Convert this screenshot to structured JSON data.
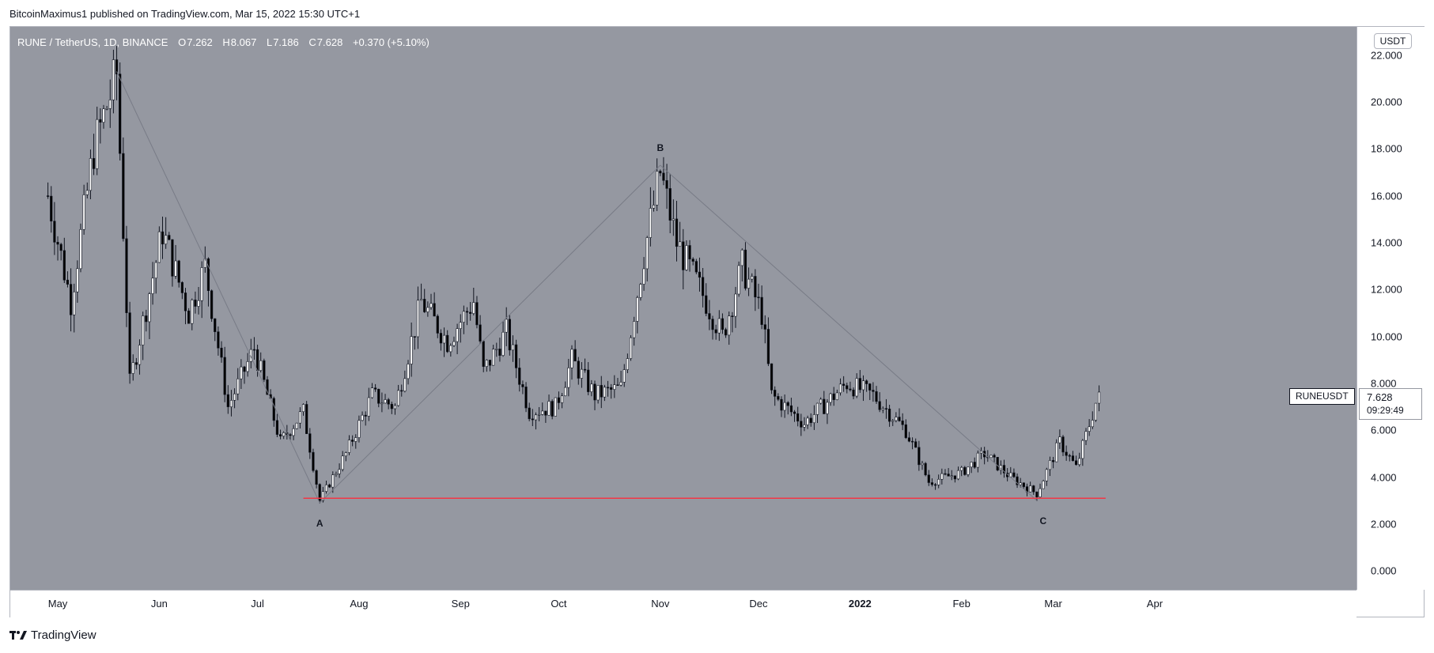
{
  "header": {
    "published_text": "BitcoinMaximus1 published on TradingView.com, Mar 15, 2022 15:30 UTC+1"
  },
  "legend": {
    "symbol_text": "RUNE / TetherUS, 1D, BINANCE",
    "o_label": "O",
    "o_value": "7.262",
    "h_label": "H",
    "h_value": "8.067",
    "l_label": "L",
    "l_value": "7.186",
    "c_label": "C",
    "c_value": "7.628",
    "change": "+0.370 (+5.10%)"
  },
  "price_axis": {
    "currency_badge": "USDT",
    "ticks": [
      "22.000",
      "20.000",
      "18.000",
      "16.000",
      "14.000",
      "12.000",
      "10.000",
      "8.000",
      "6.000",
      "4.000",
      "2.000",
      "0.000"
    ]
  },
  "time_axis": {
    "ticks": [
      "May",
      "Jun",
      "Jul",
      "Aug",
      "Sep",
      "Oct",
      "Nov",
      "Dec",
      "2022",
      "Feb",
      "Mar",
      "Apr"
    ]
  },
  "last_price": {
    "symbol": "RUNEUSDT",
    "price": "7.628",
    "countdown": "09:29:49"
  },
  "annotations": {
    "wave_a": "A",
    "wave_b": "B",
    "wave_c": "C"
  },
  "footer": {
    "brand": "TradingView"
  },
  "colors": {
    "plot_background": "#9598a1",
    "candle_up_body": "#ffffff",
    "candle_down_body": "#000000",
    "support_line": "#f23645",
    "trend_line": "#787b86"
  },
  "chart_data": {
    "type": "candlestick",
    "title": "RUNE / TetherUS, 1D, BINANCE",
    "ylabel": "USDT",
    "ylim": [
      -0.8,
      23.2
    ],
    "grid": false,
    "support_level": 3.1,
    "wave_points": [
      {
        "label": "",
        "date": "2021-05-19",
        "price": 21.3
      },
      {
        "label": "A",
        "date": "2021-07-20",
        "price": 2.9
      },
      {
        "label": "B",
        "date": "2021-11-01",
        "price": 17.3
      },
      {
        "label": "C",
        "date": "2022-02-24",
        "price": 3.0
      }
    ],
    "pivots": [
      {
        "date": "2021-04-28",
        "price": 16.0
      },
      {
        "date": "2021-05-05",
        "price": 11.5
      },
      {
        "date": "2021-05-12",
        "price": 18.0
      },
      {
        "date": "2021-05-19",
        "price": 21.2
      },
      {
        "date": "2021-05-23",
        "price": 8.0
      },
      {
        "date": "2021-06-02",
        "price": 14.5
      },
      {
        "date": "2021-06-10",
        "price": 11.0
      },
      {
        "date": "2021-06-15",
        "price": 13.0
      },
      {
        "date": "2021-06-22",
        "price": 7.0
      },
      {
        "date": "2021-06-30",
        "price": 9.5
      },
      {
        "date": "2021-07-08",
        "price": 5.5
      },
      {
        "date": "2021-07-15",
        "price": 6.8
      },
      {
        "date": "2021-07-20",
        "price": 3.0
      },
      {
        "date": "2021-07-28",
        "price": 5.0
      },
      {
        "date": "2021-08-05",
        "price": 7.5
      },
      {
        "date": "2021-08-12",
        "price": 7.0
      },
      {
        "date": "2021-08-20",
        "price": 11.5
      },
      {
        "date": "2021-08-28",
        "price": 9.8
      },
      {
        "date": "2021-09-05",
        "price": 11.5
      },
      {
        "date": "2021-09-08",
        "price": 8.5
      },
      {
        "date": "2021-09-15",
        "price": 10.2
      },
      {
        "date": "2021-09-22",
        "price": 6.8
      },
      {
        "date": "2021-09-30",
        "price": 7.0
      },
      {
        "date": "2021-10-05",
        "price": 9.0
      },
      {
        "date": "2021-10-12",
        "price": 7.5
      },
      {
        "date": "2021-10-20",
        "price": 7.8
      },
      {
        "date": "2021-10-27",
        "price": 13.5
      },
      {
        "date": "2021-11-01",
        "price": 17.0
      },
      {
        "date": "2021-11-06",
        "price": 14.0
      },
      {
        "date": "2021-11-15",
        "price": 11.5
      },
      {
        "date": "2021-11-20",
        "price": 10.0
      },
      {
        "date": "2021-11-26",
        "price": 13.0
      },
      {
        "date": "2021-12-02",
        "price": 11.0
      },
      {
        "date": "2021-12-05",
        "price": 7.5
      },
      {
        "date": "2021-12-15",
        "price": 6.3
      },
      {
        "date": "2021-12-28",
        "price": 8.0
      },
      {
        "date": "2022-01-05",
        "price": 7.5
      },
      {
        "date": "2022-01-15",
        "price": 6.0
      },
      {
        "date": "2022-01-22",
        "price": 3.8
      },
      {
        "date": "2022-02-01",
        "price": 4.2
      },
      {
        "date": "2022-02-08",
        "price": 5.0
      },
      {
        "date": "2022-02-16",
        "price": 4.0
      },
      {
        "date": "2022-02-24",
        "price": 3.3
      },
      {
        "date": "2022-03-03",
        "price": 5.5
      },
      {
        "date": "2022-03-08",
        "price": 4.4
      },
      {
        "date": "2022-03-15",
        "price": 7.628
      }
    ]
  }
}
